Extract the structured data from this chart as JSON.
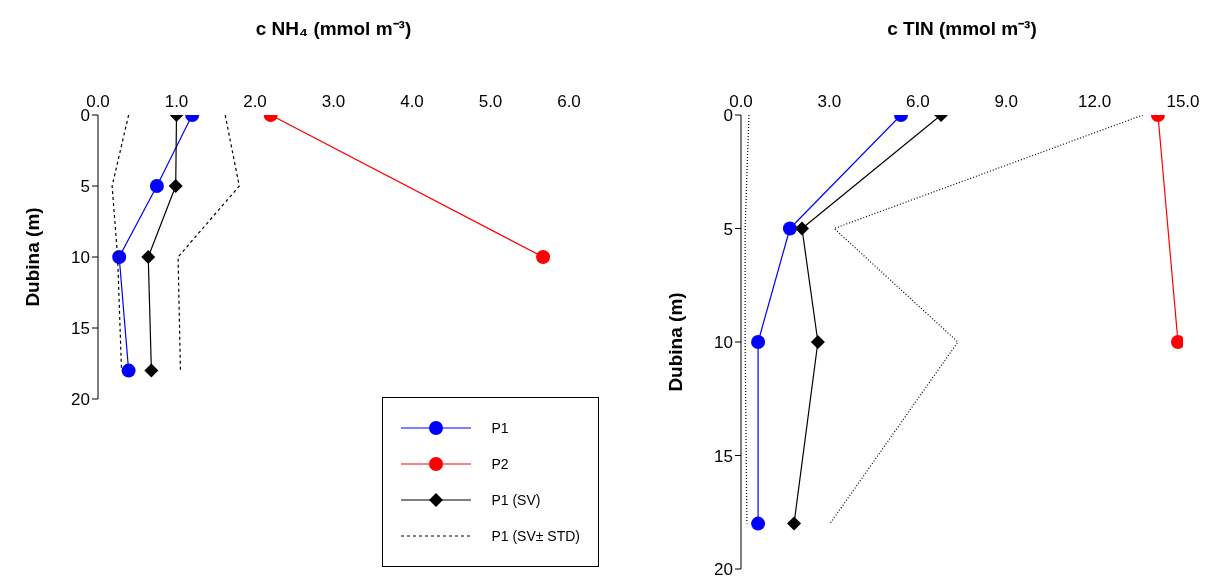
{
  "chart_data": [
    {
      "type": "line",
      "xlabel": "c NH₄ (mmol m⁻³)",
      "ylabel": "Dubina (m)",
      "xlim": [
        0,
        6
      ],
      "xticks": [
        {
          "value": 0,
          "label": "0.0"
        },
        {
          "value": 1,
          "label": "1.0"
        },
        {
          "value": 2,
          "label": "2.0"
        },
        {
          "value": 3,
          "label": "3.0"
        },
        {
          "value": 4,
          "label": "4.0"
        },
        {
          "value": 5,
          "label": "5.0"
        },
        {
          "value": 6,
          "label": "6.0"
        }
      ],
      "ylim": [
        20,
        0
      ],
      "yticks": [
        0,
        5,
        10,
        15,
        20
      ],
      "grid": false,
      "legend": "bottom right",
      "series": [
        {
          "name": "P1",
          "color": "#0000ff",
          "marker": "circle",
          "line_style": "solid",
          "x": [
            1.2,
            0.75,
            0.27,
            0.39
          ],
          "values": [
            0,
            5,
            10,
            18
          ]
        },
        {
          "name": "P2",
          "color": "#ff0000",
          "marker": "circle",
          "line_style": "solid",
          "x": [
            2.2,
            5.67
          ],
          "values": [
            0,
            10
          ]
        },
        {
          "name": "P1 (SV)",
          "color": "#000000",
          "marker": "diamond",
          "line_style": "solid",
          "x": [
            1.0,
            0.99,
            0.64,
            0.68
          ],
          "values": [
            0,
            5,
            10,
            18
          ]
        },
        {
          "name": "P1 (SV± STD)",
          "color": "#000000",
          "marker": "none",
          "line_style": "dashed",
          "x": [
            0.39,
            0.18,
            0.25,
            0.3
          ],
          "values": [
            0,
            5,
            10,
            18
          ]
        },
        {
          "color": "#000000",
          "marker": "none",
          "line_style": "dashed",
          "x": [
            1.62,
            1.8,
            1.02,
            1.05
          ],
          "values": [
            0,
            5,
            10,
            18
          ]
        }
      ]
    },
    {
      "type": "line",
      "xlabel": "c TIN  (mmol m⁻³)",
      "ylabel": "Dubina (m)",
      "xlim": [
        0,
        15
      ],
      "xticks": [
        {
          "value": 0,
          "label": "0.0"
        },
        {
          "value": 3,
          "label": "3.0"
        },
        {
          "value": 6,
          "label": "6.0"
        },
        {
          "value": 9,
          "label": "9.0"
        },
        {
          "value": 12,
          "label": "12.0"
        },
        {
          "value": 15,
          "label": "15.0"
        }
      ],
      "ylim": [
        20,
        0
      ],
      "yticks": [
        0,
        5,
        10,
        15,
        20
      ],
      "grid": false,
      "series": [
        {
          "color": "#0000ff",
          "marker": "circle",
          "line_style": "solid",
          "x": [
            5.43,
            1.66,
            0.58,
            0.58
          ],
          "values": [
            0,
            5,
            10,
            18
          ]
        },
        {
          "color": "#ff0000",
          "marker": "circle",
          "line_style": "solid",
          "x": [
            14.15,
            14.83
          ],
          "values": [
            0,
            10
          ]
        },
        {
          "color": "#000000",
          "marker": "diamond",
          "line_style": "solid",
          "x": [
            6.79,
            2.07,
            2.61,
            1.8
          ],
          "values": [
            0,
            5,
            10,
            18
          ]
        },
        {
          "color": "#000000",
          "marker": "none",
          "line_style": "dotted",
          "x": [
            0.27,
            0.14,
            0.14,
            0.2
          ],
          "values": [
            0,
            5,
            10,
            18
          ]
        },
        {
          "color": "#000000",
          "marker": "none",
          "line_style": "dotted",
          "x": [
            13.64,
            3.16,
            7.36,
            3.02
          ],
          "values": [
            0,
            5,
            10,
            18
          ]
        }
      ]
    }
  ]
}
